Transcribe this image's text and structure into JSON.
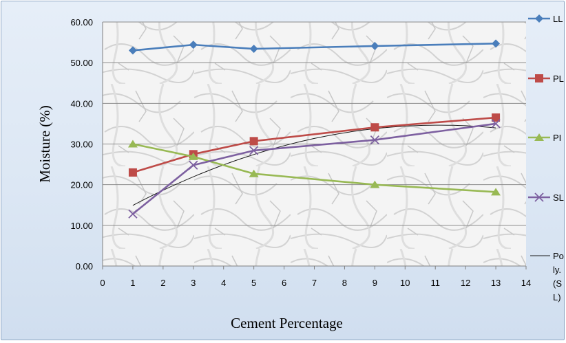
{
  "chart_data": {
    "type": "line",
    "title": "",
    "xlabel": "Cement Percentage",
    "ylabel": "Moisture (%)",
    "xlim": [
      0,
      14
    ],
    "ylim": [
      0,
      60
    ],
    "x_ticks": [
      "0",
      "1",
      "2",
      "3",
      "4",
      "5",
      "6",
      "7",
      "8",
      "9",
      "10",
      "11",
      "12",
      "13",
      "14"
    ],
    "y_ticks": [
      "0.00",
      "10.00",
      "20.00",
      "30.00",
      "40.00",
      "50.00",
      "60.00"
    ],
    "grid": "horizontal",
    "legend_position": "right",
    "x": [
      1,
      3,
      5,
      9,
      13
    ],
    "series": [
      {
        "name": "LL",
        "color": "#4a7ebb",
        "marker": "diamond",
        "values": [
          53.0,
          54.4,
          53.4,
          54.1,
          54.7
        ]
      },
      {
        "name": "PL",
        "color": "#be4b48",
        "marker": "square",
        "values": [
          23.0,
          27.5,
          30.7,
          34.1,
          36.5
        ]
      },
      {
        "name": "PI",
        "color": "#98b954",
        "marker": "triangle",
        "values": [
          30.0,
          26.9,
          22.7,
          20.0,
          18.2
        ]
      },
      {
        "name": "SL",
        "color": "#7d60a0",
        "marker": "x",
        "values": [
          12.8,
          24.8,
          28.4,
          31.0,
          35.0
        ]
      }
    ],
    "trendline": {
      "name_lines": [
        "Po",
        "ly.",
        "(S",
        "L)"
      ],
      "color": "#1a1a1a",
      "type": "polynomial",
      "of_series": "SL"
    }
  }
}
